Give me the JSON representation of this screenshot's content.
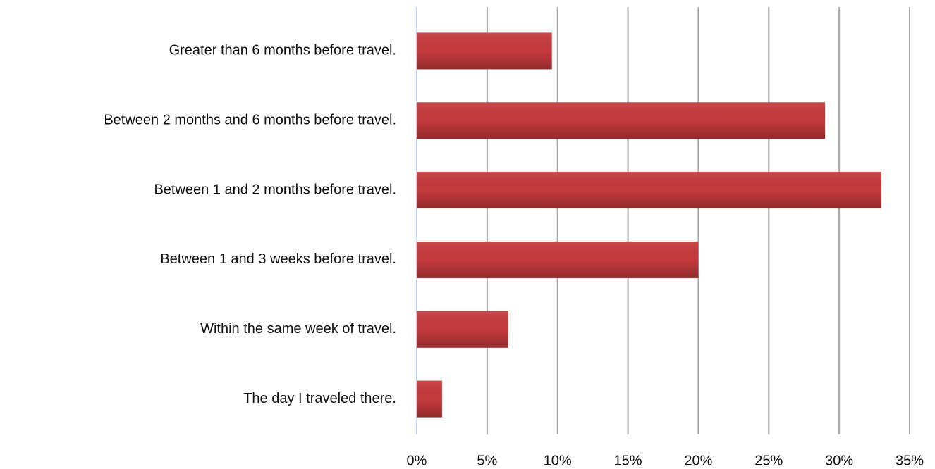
{
  "chart_data": {
    "type": "barh",
    "categories": [
      "Greater than 6 months before travel.",
      "Between 2 months and 6 months before travel.",
      "Between 1 and 2 months before travel.",
      "Between 1 and 3 weeks before travel.",
      "Within the same week of travel.",
      "The day I traveled there."
    ],
    "values": [
      9.6,
      29.0,
      33.0,
      20.0,
      6.5,
      1.8
    ],
    "color": "#c43a3c",
    "xlim": [
      0,
      35
    ],
    "xticks": [
      {
        "value": 0,
        "label": "0%"
      },
      {
        "value": 5,
        "label": "5%"
      },
      {
        "value": 10,
        "label": "10%"
      },
      {
        "value": 15,
        "label": "15%"
      },
      {
        "value": 20,
        "label": "20%"
      },
      {
        "value": 25,
        "label": "25%"
      },
      {
        "value": 30,
        "label": "30%"
      },
      {
        "value": 35,
        "label": "35%"
      }
    ],
    "grid": true
  }
}
